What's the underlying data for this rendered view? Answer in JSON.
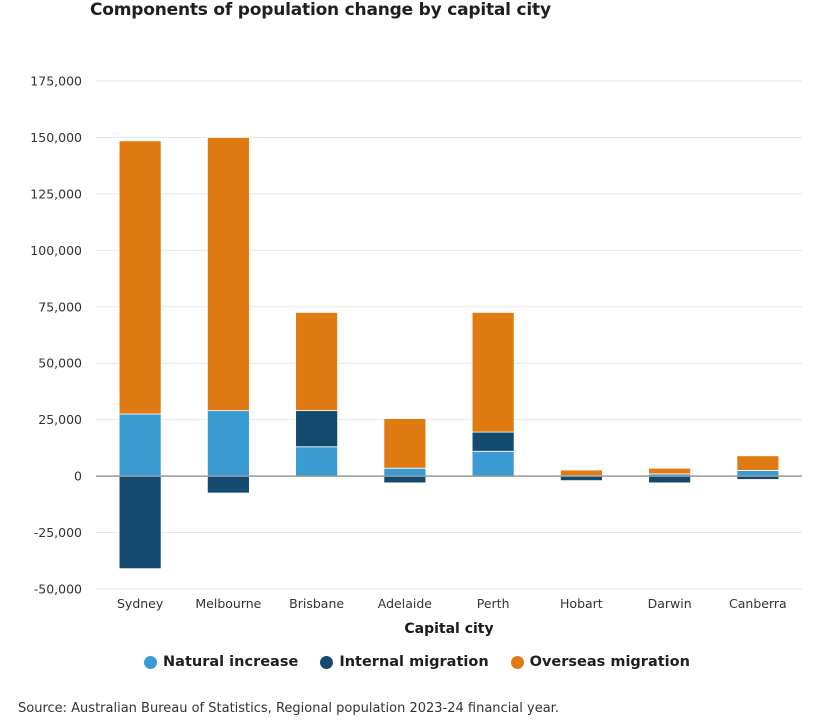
{
  "chart_data": {
    "type": "bar",
    "stacked": true,
    "title": "Components of population change by capital city",
    "xlabel": "Capital city",
    "ylabel": "",
    "ylim": [
      -50000,
      175000
    ],
    "yticks": [
      175000,
      150000,
      125000,
      100000,
      75000,
      50000,
      25000,
      0,
      -25000,
      -50000
    ],
    "ytick_labels": [
      "175,000",
      "150,000",
      "125,000",
      "100,000",
      "75,000",
      "50,000",
      "25,000",
      "0",
      "-25,000",
      "-50,000"
    ],
    "grid": true,
    "legend_position": "bottom",
    "categories": [
      "Sydney",
      "Melbourne",
      "Brisbane",
      "Adelaide",
      "Perth",
      "Hobart",
      "Darwin",
      "Canberra"
    ],
    "series": [
      {
        "name": "Natural increase",
        "color": "#3a9bd3",
        "values": [
          27500,
          29000,
          13000,
          3500,
          11000,
          200,
          1000,
          2500
        ]
      },
      {
        "name": "Internal migration",
        "color": "#154a70",
        "values": [
          -41000,
          -7500,
          16000,
          -3000,
          8500,
          -2000,
          -3000,
          -1500
        ]
      },
      {
        "name": "Overseas migration",
        "color": "#e07b14",
        "values": [
          121000,
          121000,
          43500,
          22000,
          53000,
          2500,
          2500,
          6500
        ]
      }
    ],
    "source": "Source: Australian Bureau of Statistics, Regional population 2023-24 financial year."
  }
}
